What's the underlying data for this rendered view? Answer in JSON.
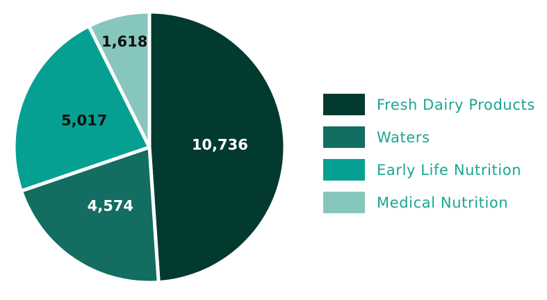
{
  "chart_data": {
    "type": "pie",
    "title": "",
    "categories": [
      "Fresh Dairy Products",
      "Waters",
      "Early Life Nutrition",
      "Medical Nutrition"
    ],
    "values": [
      10736,
      4574,
      5017,
      1618
    ],
    "value_labels": [
      "10,736",
      "4,574",
      "5,017",
      "1,618"
    ],
    "colors": [
      "#033a2f",
      "#136d60",
      "#05a092",
      "#87c6bd"
    ],
    "label_colors": [
      "#ffffff",
      "#ffffff",
      "#111111",
      "#111111"
    ],
    "legend_position": "right",
    "legend_text_color": "#1aa590",
    "start_angle": "12 o'clock",
    "direction": "clockwise"
  }
}
